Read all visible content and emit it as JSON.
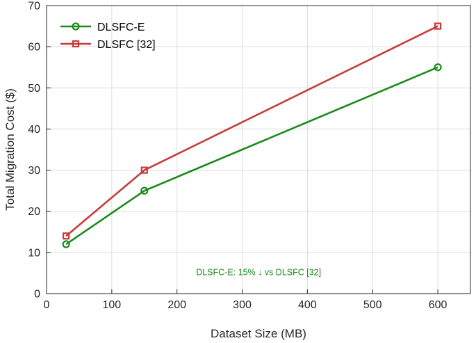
{
  "chart_data": {
    "type": "line",
    "xlabel": "Dataset Size (MB)",
    "ylabel": "Total Migration Cost ($)",
    "xlim": [
      0,
      650
    ],
    "ylim": [
      0,
      70
    ],
    "xticks": [
      0,
      100,
      200,
      300,
      400,
      500,
      600
    ],
    "yticks": [
      0,
      10,
      20,
      30,
      40,
      50,
      60,
      70
    ],
    "grid": true,
    "legend_position": "top-left",
    "series": [
      {
        "name": "DLSFC-E",
        "color": "#1a8a1a",
        "marker": "circle",
        "x": [
          30,
          150,
          600
        ],
        "y": [
          12,
          25,
          55
        ]
      },
      {
        "name": "DLSFC [32]",
        "color": "#c83a3a",
        "marker": "square",
        "x": [
          30,
          150,
          600
        ],
        "y": [
          14,
          30,
          65
        ]
      }
    ],
    "annotation": {
      "text": "DLSFC-E: 15% ↓ vs DLSFC [32]",
      "x": 290,
      "y": 4.5,
      "color": "#1a8a1a"
    }
  }
}
